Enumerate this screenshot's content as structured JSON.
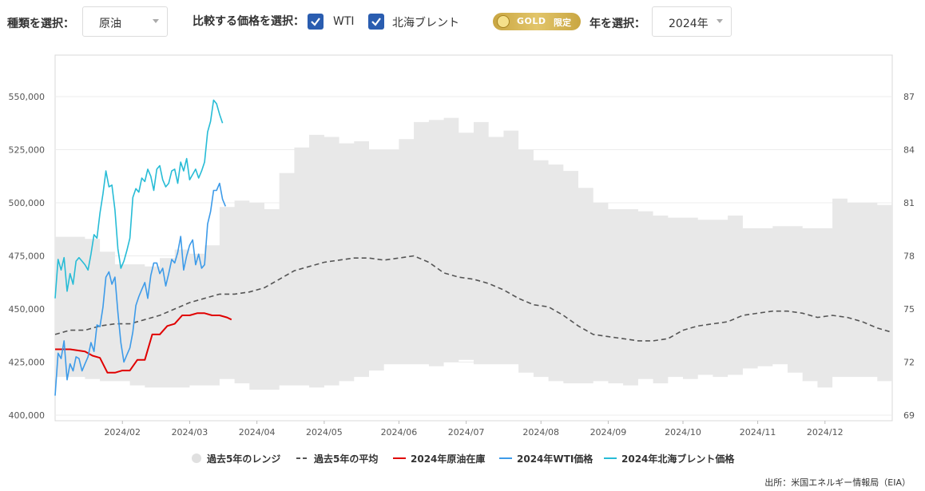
{
  "controls": {
    "type_label": "種類を選択：",
    "type_value": "原油",
    "compare_label": "比較する価格を選択：",
    "checkbox_wti": "WTI",
    "checkbox_brent": "北海ブレント",
    "badge_text": "GOLD",
    "badge_tag": "限定",
    "year_label": "年を選択：",
    "year_value": "2024年"
  },
  "colors": {
    "range": "#e8e8e8",
    "avg": "#555555",
    "inventory": "#e00000",
    "wti": "#3d9be9",
    "brent": "#27bcd6",
    "checkbox": "#2a5db0"
  },
  "legend": {
    "range": "過去5年のレンジ",
    "avg": "過去5年の平均",
    "inventory": "2024年原油在庫",
    "wti": "2024年WTI価格",
    "brent": "2024年北海ブレント価格"
  },
  "source": "出所：米国エネルギー情報局（EIA）",
  "chart_data": {
    "type": "line",
    "x_ticks": [
      "2024/02",
      "2024/03",
      "2024/04",
      "2024/05",
      "2024/06",
      "2024/07",
      "2024/08",
      "2024/09",
      "2024/10",
      "2024/11",
      "2024/12"
    ],
    "x_tick_week": [
      4.5,
      9.0,
      13.5,
      18.0,
      23.0,
      27.5,
      32.5,
      37.0,
      42.0,
      47.0,
      51.5
    ],
    "y_left": {
      "ticks": [
        "400,000",
        "425,000",
        "450,000",
        "475,000",
        "500,000",
        "525,000",
        "550,000"
      ],
      "min": 400000,
      "max": 550000
    },
    "y_right": {
      "ticks": [
        "69",
        "72",
        "75",
        "78",
        "81",
        "84",
        "87"
      ],
      "min": 69,
      "max": 87
    },
    "range_max": [
      [
        0,
        484000
      ],
      [
        2,
        483000
      ],
      [
        3,
        477000
      ],
      [
        4,
        471000
      ],
      [
        6,
        470000
      ],
      [
        7,
        474000
      ],
      [
        8,
        478000
      ],
      [
        9,
        476000
      ],
      [
        10,
        480000
      ],
      [
        11,
        498000
      ],
      [
        12,
        501000
      ],
      [
        13,
        500000
      ],
      [
        14,
        497000
      ],
      [
        15,
        514000
      ],
      [
        16,
        526000
      ],
      [
        17,
        532000
      ],
      [
        18,
        531000
      ],
      [
        19,
        528000
      ],
      [
        20,
        529000
      ],
      [
        21,
        525000
      ],
      [
        22,
        525000
      ],
      [
        23,
        530000
      ],
      [
        24,
        538000
      ],
      [
        25,
        539000
      ],
      [
        26,
        540000
      ],
      [
        27,
        533000
      ],
      [
        28,
        538000
      ],
      [
        29,
        531000
      ],
      [
        30,
        534000
      ],
      [
        31,
        525000
      ],
      [
        32,
        520000
      ],
      [
        33,
        518000
      ],
      [
        34,
        515000
      ],
      [
        35,
        507000
      ],
      [
        36,
        500000
      ],
      [
        37,
        497000
      ],
      [
        38,
        497000
      ],
      [
        39,
        496000
      ],
      [
        40,
        494000
      ],
      [
        41,
        493000
      ],
      [
        42,
        493000
      ],
      [
        43,
        492000
      ],
      [
        44,
        492000
      ],
      [
        45,
        494000
      ],
      [
        46,
        488000
      ],
      [
        47,
        488000
      ],
      [
        48,
        489000
      ],
      [
        49,
        489000
      ],
      [
        50,
        488000
      ],
      [
        51,
        488000
      ],
      [
        52,
        502000
      ],
      [
        53,
        500000
      ],
      [
        54,
        500000
      ],
      [
        55,
        499000
      ],
      [
        56,
        493000
      ]
    ],
    "range_min": [
      [
        0,
        418000
      ],
      [
        2,
        417000
      ],
      [
        3,
        416000
      ],
      [
        4,
        416000
      ],
      [
        5,
        414000
      ],
      [
        6,
        413000
      ],
      [
        8,
        413000
      ],
      [
        9,
        414000
      ],
      [
        10,
        414000
      ],
      [
        11,
        417000
      ],
      [
        12,
        415000
      ],
      [
        13,
        412000
      ],
      [
        14,
        412000
      ],
      [
        15,
        414000
      ],
      [
        16,
        414000
      ],
      [
        17,
        413000
      ],
      [
        18,
        414000
      ],
      [
        19,
        416000
      ],
      [
        20,
        418000
      ],
      [
        21,
        421000
      ],
      [
        22,
        424000
      ],
      [
        23,
        424000
      ],
      [
        24,
        424000
      ],
      [
        25,
        423000
      ],
      [
        26,
        425000
      ],
      [
        27,
        426000
      ],
      [
        28,
        424000
      ],
      [
        29,
        424000
      ],
      [
        30,
        424000
      ],
      [
        31,
        420000
      ],
      [
        32,
        418000
      ],
      [
        33,
        416000
      ],
      [
        34,
        415000
      ],
      [
        35,
        415000
      ],
      [
        36,
        416000
      ],
      [
        37,
        415000
      ],
      [
        38,
        414000
      ],
      [
        39,
        417000
      ],
      [
        40,
        415000
      ],
      [
        41,
        418000
      ],
      [
        42,
        417000
      ],
      [
        43,
        419000
      ],
      [
        44,
        418000
      ],
      [
        45,
        419000
      ],
      [
        46,
        422000
      ],
      [
        47,
        423000
      ],
      [
        48,
        424000
      ],
      [
        49,
        420000
      ],
      [
        50,
        416000
      ],
      [
        51,
        413000
      ],
      [
        52,
        418000
      ],
      [
        53,
        418000
      ],
      [
        54,
        418000
      ],
      [
        55,
        416000
      ],
      [
        56,
        418000
      ]
    ],
    "avg": [
      [
        0,
        438000
      ],
      [
        1,
        440000
      ],
      [
        2,
        440000
      ],
      [
        3,
        442000
      ],
      [
        4,
        443000
      ],
      [
        5,
        443000
      ],
      [
        6,
        445000
      ],
      [
        7,
        447000
      ],
      [
        8,
        450000
      ],
      [
        9,
        453000
      ],
      [
        10,
        455000
      ],
      [
        11,
        457000
      ],
      [
        12,
        457000
      ],
      [
        13,
        458000
      ],
      [
        14,
        460000
      ],
      [
        15,
        464000
      ],
      [
        16,
        468000
      ],
      [
        17,
        470000
      ],
      [
        18,
        472000
      ],
      [
        19,
        473000
      ],
      [
        20,
        474000
      ],
      [
        21,
        474000
      ],
      [
        22,
        473000
      ],
      [
        23,
        474000
      ],
      [
        24,
        475000
      ],
      [
        25,
        472000
      ],
      [
        26,
        467000
      ],
      [
        27,
        465000
      ],
      [
        28,
        464000
      ],
      [
        29,
        462000
      ],
      [
        30,
        459000
      ],
      [
        31,
        455000
      ],
      [
        32,
        452000
      ],
      [
        33,
        451000
      ],
      [
        34,
        447000
      ],
      [
        35,
        442000
      ],
      [
        36,
        438000
      ],
      [
        37,
        437000
      ],
      [
        38,
        436000
      ],
      [
        39,
        435000
      ],
      [
        40,
        435000
      ],
      [
        41,
        436000
      ],
      [
        42,
        440000
      ],
      [
        43,
        442000
      ],
      [
        44,
        443000
      ],
      [
        45,
        444000
      ],
      [
        46,
        447000
      ],
      [
        47,
        448000
      ],
      [
        48,
        449000
      ],
      [
        49,
        449000
      ],
      [
        50,
        448000
      ],
      [
        51,
        446000
      ],
      [
        52,
        447000
      ],
      [
        53,
        446000
      ],
      [
        54,
        444000
      ],
      [
        55,
        441000
      ],
      [
        56,
        439000
      ]
    ],
    "inventory": [
      [
        0,
        431000
      ],
      [
        1,
        431000
      ],
      [
        2,
        430000
      ],
      [
        2.5,
        428000
      ],
      [
        3,
        427000
      ],
      [
        3.5,
        420000
      ],
      [
        4,
        420000
      ],
      [
        4.5,
        421000
      ],
      [
        5,
        421000
      ],
      [
        5.5,
        426000
      ],
      [
        6,
        426000
      ],
      [
        6.5,
        438000
      ],
      [
        7,
        438000
      ],
      [
        7.5,
        442000
      ],
      [
        8,
        443000
      ],
      [
        8.5,
        447000
      ],
      [
        9,
        447000
      ],
      [
        9.5,
        448000
      ],
      [
        10,
        448000
      ],
      [
        10.5,
        447000
      ],
      [
        11,
        447000
      ],
      [
        11.5,
        446000
      ],
      [
        11.8,
        445000
      ]
    ],
    "wti": [
      [
        0,
        70.1
      ],
      [
        0.2,
        72.5
      ],
      [
        0.4,
        72.2
      ],
      [
        0.6,
        73.2
      ],
      [
        0.8,
        71.0
      ],
      [
        1.0,
        71.9
      ],
      [
        1.2,
        71.5
      ],
      [
        1.4,
        72.3
      ],
      [
        1.6,
        72.2
      ],
      [
        1.8,
        71.5
      ],
      [
        2.0,
        71.9
      ],
      [
        2.2,
        72.3
      ],
      [
        2.4,
        73.1
      ],
      [
        2.6,
        72.6
      ],
      [
        2.8,
        74.1
      ],
      [
        3.0,
        74.0
      ],
      [
        3.2,
        75.1
      ],
      [
        3.4,
        76.8
      ],
      [
        3.6,
        77.1
      ],
      [
        3.8,
        76.4
      ],
      [
        4.0,
        76.8
      ],
      [
        4.2,
        74.8
      ],
      [
        4.4,
        73.1
      ],
      [
        4.6,
        72.0
      ],
      [
        4.8,
        72.4
      ],
      [
        5.0,
        72.8
      ],
      [
        5.2,
        73.7
      ],
      [
        5.4,
        75.2
      ],
      [
        5.6,
        75.7
      ],
      [
        5.8,
        76.1
      ],
      [
        6.0,
        76.5
      ],
      [
        6.2,
        75.6
      ],
      [
        6.4,
        76.9
      ],
      [
        6.6,
        77.6
      ],
      [
        6.8,
        77.6
      ],
      [
        7.0,
        77.0
      ],
      [
        7.2,
        77.3
      ],
      [
        7.4,
        76.3
      ],
      [
        7.6,
        77.0
      ],
      [
        7.8,
        77.8
      ],
      [
        8.0,
        77.6
      ],
      [
        8.2,
        78.2
      ],
      [
        8.4,
        79.1
      ],
      [
        8.6,
        77.2
      ],
      [
        8.8,
        78.0
      ],
      [
        9.0,
        78.6
      ],
      [
        9.2,
        78.9
      ],
      [
        9.4,
        77.5
      ],
      [
        9.6,
        78.1
      ],
      [
        9.8,
        77.3
      ],
      [
        10.0,
        77.5
      ],
      [
        10.2,
        79.8
      ],
      [
        10.4,
        80.5
      ],
      [
        10.6,
        81.7
      ],
      [
        10.8,
        81.7
      ],
      [
        11.0,
        82.1
      ],
      [
        11.2,
        81.2
      ],
      [
        11.4,
        80.8
      ]
    ],
    "brent": [
      [
        0,
        75.6
      ],
      [
        0.2,
        77.8
      ],
      [
        0.4,
        77.2
      ],
      [
        0.6,
        77.9
      ],
      [
        0.8,
        76.0
      ],
      [
        1.0,
        77.0
      ],
      [
        1.2,
        76.4
      ],
      [
        1.4,
        77.7
      ],
      [
        1.6,
        77.9
      ],
      [
        1.8,
        77.7
      ],
      [
        2.0,
        77.5
      ],
      [
        2.2,
        77.2
      ],
      [
        2.4,
        78.1
      ],
      [
        2.6,
        79.2
      ],
      [
        2.8,
        79.0
      ],
      [
        3.0,
        80.4
      ],
      [
        3.2,
        81.5
      ],
      [
        3.4,
        82.8
      ],
      [
        3.6,
        81.9
      ],
      [
        3.8,
        82.0
      ],
      [
        4.0,
        80.6
      ],
      [
        4.2,
        78.4
      ],
      [
        4.4,
        77.3
      ],
      [
        4.6,
        77.7
      ],
      [
        4.8,
        78.3
      ],
      [
        5.0,
        79.0
      ],
      [
        5.2,
        81.3
      ],
      [
        5.4,
        81.8
      ],
      [
        5.6,
        81.6
      ],
      [
        5.8,
        82.4
      ],
      [
        6.0,
        82.2
      ],
      [
        6.2,
        82.9
      ],
      [
        6.4,
        82.5
      ],
      [
        6.6,
        81.7
      ],
      [
        6.8,
        82.9
      ],
      [
        7.0,
        83.1
      ],
      [
        7.2,
        82.3
      ],
      [
        7.4,
        81.9
      ],
      [
        7.6,
        82.1
      ],
      [
        7.8,
        82.8
      ],
      [
        8.0,
        82.9
      ],
      [
        8.2,
        82.1
      ],
      [
        8.4,
        83.3
      ],
      [
        8.6,
        82.8
      ],
      [
        8.8,
        83.5
      ],
      [
        9.0,
        82.3
      ],
      [
        9.2,
        82.6
      ],
      [
        9.4,
        82.9
      ],
      [
        9.6,
        82.4
      ],
      [
        9.8,
        82.8
      ],
      [
        10.0,
        83.3
      ],
      [
        10.2,
        85.0
      ],
      [
        10.4,
        85.6
      ],
      [
        10.6,
        86.8
      ],
      [
        10.8,
        86.6
      ],
      [
        11.0,
        86.0
      ],
      [
        11.2,
        85.5
      ]
    ],
    "grid": true,
    "legend_position": "bottom"
  }
}
